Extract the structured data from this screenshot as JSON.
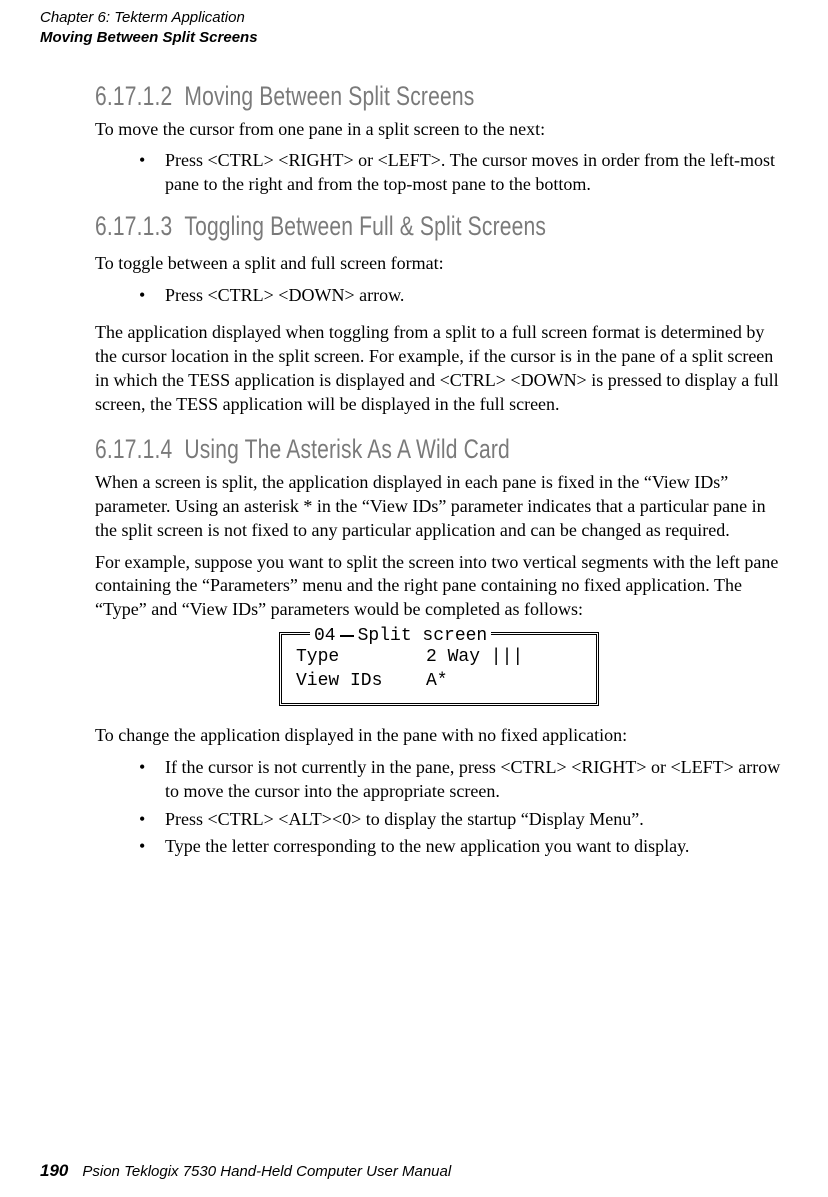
{
  "runningHead": {
    "line1": "Chapter 6: Tekterm Application",
    "line2": "Moving Between Split Screens"
  },
  "sections": {
    "s1": {
      "num": "6.17.1.2",
      "title": "Moving Between Split Screens",
      "intro": "To move the cursor from one pane in a split screen to the next:",
      "bullet1": "Press <CTRL> <RIGHT> or <LEFT>. The cursor moves in order from the left-most pane to the right and from the top-most pane to the bottom."
    },
    "s2": {
      "num": "6.17.1.3",
      "title": "Toggling Between Full & Split Screens",
      "intro": "To toggle between a split and full screen format:",
      "bullet1": "Press <CTRL> <DOWN> arrow.",
      "para1": "The application displayed when toggling from a split to a full screen format is determined by the cursor location in the split screen. For example, if the cursor is in the pane of a split screen in which the TESS application is displayed and <CTRL> <DOWN> is pressed to display a full screen, the TESS application will be displayed in the full screen."
    },
    "s3": {
      "num": "6.17.1.4",
      "title": "Using The Asterisk As A Wild Card",
      "para1": "When a screen is split, the application displayed in each pane is fixed in the “View IDs” parameter. Using an asterisk * in the “View IDs” parameter indicates that a particular pane in the split screen is not fixed to any particular application and can be changed as required.",
      "para2": "For example, suppose you want to split the screen into two vertical segments with the left pane containing the “Parameters” menu and the right pane containing no fixed application. The “Type” and “View IDs” parameters would be completed as follows:",
      "box": {
        "legendNum": "04",
        "legendText": "Split screen",
        "row1k": "Type",
        "row1v": "2 Way |||",
        "row2k": "View IDs",
        "row2v": "A*"
      },
      "para3": "To change the application displayed in the pane with no fixed application:",
      "bullets": {
        "b1": "If the cursor is not currently in the pane, press <CTRL> <RIGHT> or <LEFT> arrow to move the cursor into the appropriate screen.",
        "b2": "Press <CTRL> <ALT><0> to display the startup “Display Menu”.",
        "b3": "Type the letter corresponding to the new application you want to display."
      }
    }
  },
  "footer": {
    "pageNum": "190",
    "text": "Psion Teklogix 7530 Hand-Held Computer User Manual"
  }
}
